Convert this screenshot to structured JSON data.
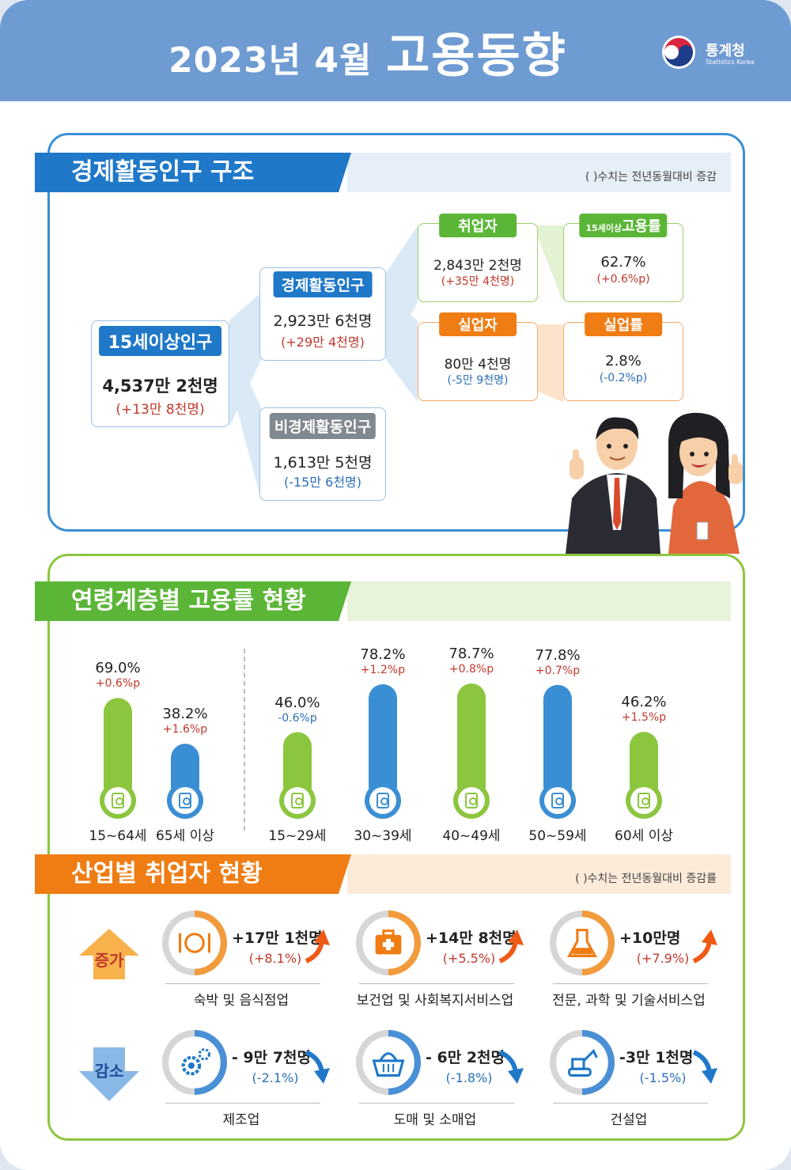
{
  "header": {
    "title_year_month": "2023년 4월",
    "title_main": "고용동향",
    "logo_name": "통계청",
    "logo_sub": "Statistics Korea"
  },
  "colors": {
    "header_blue": "#6f9bd3",
    "section_blue": "#1f78c8",
    "section_green": "#5bb637",
    "section_orange": "#ef7d14",
    "increase_red": "#c0392b",
    "decrease_blue": "#2a6fb8"
  },
  "section1": {
    "title": "경제활동인구 구조",
    "note": "( )수치는 전년동월대비 증감",
    "pop15": {
      "label": "15세이상인구",
      "value": "4,537만 2천명",
      "change": "(+13만 8천명)"
    },
    "econ_active": {
      "label": "경제활동인구",
      "value": "2,923만 6천명",
      "change": "(+29만 4천명)"
    },
    "non_econ": {
      "label": "비경제활동인구",
      "value": "1,613만 5천명",
      "change": "(-15만 6천명)"
    },
    "employed": {
      "label": "취업자",
      "value": "2,843만 2천명",
      "change": "(+35만 4천명)"
    },
    "unemployed": {
      "label": "실업자",
      "value": "80만 4천명",
      "change": "(-5만 9천명)"
    },
    "emp_rate": {
      "label_prefix": "15세이상",
      "label": "고용률",
      "value": "62.7%",
      "change": "(+0.6%p)"
    },
    "unemp_rate": {
      "label": "실업률",
      "value": "2.8%",
      "change": "(-0.2%p)"
    }
  },
  "section2": {
    "title": "연령계층별 고용률 현황"
  },
  "chart_data": {
    "type": "bar",
    "categories": [
      "15~64세",
      "65세 이상",
      "15~29세",
      "30~39세",
      "40~49세",
      "50~59세",
      "60세 이상"
    ],
    "values": [
      69.0,
      38.2,
      46.0,
      78.2,
      78.7,
      77.8,
      46.2
    ],
    "value_labels": [
      "69.0%",
      "38.2%",
      "46.0%",
      "78.2%",
      "78.7%",
      "77.8%",
      "46.2%"
    ],
    "changes": [
      "+0.6%p",
      "+1.6%p",
      "-0.6%p",
      "+1.2%p",
      "+0.8%p",
      "+0.7%p",
      "+1.5%p"
    ],
    "bar_colors": [
      "#8cc63f",
      "#3a8fd4",
      "#8cc63f",
      "#3a8fd4",
      "#8cc63f",
      "#3a8fd4",
      "#8cc63f"
    ],
    "ylim": [
      0,
      100
    ],
    "grid": false
  },
  "section3": {
    "title": "산업별 취업자 현황",
    "note": "( )수치는 전년동월대비 증감률",
    "increase_label": "증가",
    "decrease_label": "감소",
    "increase": [
      {
        "value": "+17만 1천명",
        "rate": "(+8.1%)",
        "label": "숙박 및 음식점업",
        "icon": "dining-icon"
      },
      {
        "value": "+14만 8천명",
        "rate": "(+5.5%)",
        "label": "보건업 및 사회복지서비스업",
        "icon": "first-aid-kit-icon"
      },
      {
        "value": "+10만명",
        "rate": "(+7.9%)",
        "label": "전문, 과학 및 기술서비스업",
        "icon": "lab-flask-icon"
      }
    ],
    "decrease": [
      {
        "value": "- 9만 7천명",
        "rate": "(-2.1%)",
        "label": "제조업",
        "icon": "gears-icon"
      },
      {
        "value": "- 6만 2천명",
        "rate": "(-1.8%)",
        "label": "도매 및 소매업",
        "icon": "shopping-basket-icon"
      },
      {
        "value": "-3만 1천명",
        "rate": "(-1.5%)",
        "label": "건설업",
        "icon": "excavator-icon"
      }
    ]
  }
}
